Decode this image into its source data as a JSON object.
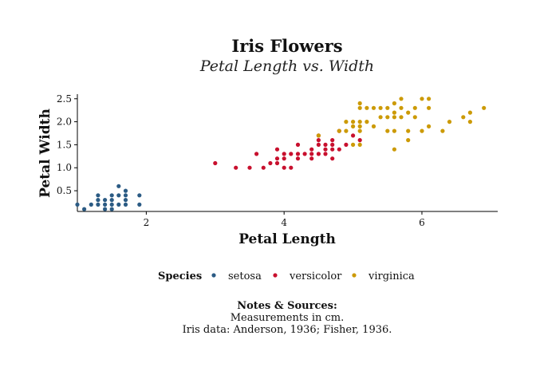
{
  "chart_data": {
    "type": "scatter",
    "title": "Iris Flowers",
    "subtitle": "Petal Length vs. Width",
    "xlabel": "Petal Length",
    "ylabel": "Petal Width",
    "xlim": [
      1.0,
      7.1
    ],
    "ylim": [
      0.05,
      2.6
    ],
    "xticks": [
      2,
      4,
      6
    ],
    "xtick_labels": [
      "2",
      "4",
      "6"
    ],
    "yticks": [
      0.5,
      1.0,
      1.5,
      2.0,
      2.5
    ],
    "ytick_labels": [
      "0.5",
      "1.0",
      "1.5",
      "2.0",
      "2.5"
    ],
    "grid": false,
    "legend": {
      "title": "Species",
      "position": "bottom"
    },
    "colors": {
      "setosa": "#2b5b84",
      "versicolor": "#c8102e",
      "virginica": "#cc9a06"
    },
    "series": [
      {
        "name": "setosa",
        "points": [
          [
            1.0,
            0.2
          ],
          [
            1.1,
            0.1
          ],
          [
            1.2,
            0.2
          ],
          [
            1.3,
            0.2
          ],
          [
            1.3,
            0.3
          ],
          [
            1.3,
            0.4
          ],
          [
            1.4,
            0.1
          ],
          [
            1.4,
            0.2
          ],
          [
            1.4,
            0.3
          ],
          [
            1.5,
            0.1
          ],
          [
            1.5,
            0.2
          ],
          [
            1.5,
            0.3
          ],
          [
            1.5,
            0.4
          ],
          [
            1.6,
            0.2
          ],
          [
            1.6,
            0.4
          ],
          [
            1.6,
            0.6
          ],
          [
            1.7,
            0.2
          ],
          [
            1.7,
            0.3
          ],
          [
            1.7,
            0.4
          ],
          [
            1.7,
            0.5
          ],
          [
            1.9,
            0.2
          ],
          [
            1.9,
            0.4
          ]
        ]
      },
      {
        "name": "versicolor",
        "points": [
          [
            3.0,
            1.1
          ],
          [
            3.3,
            1.0
          ],
          [
            3.5,
            1.0
          ],
          [
            3.6,
            1.3
          ],
          [
            3.7,
            1.0
          ],
          [
            3.8,
            1.1
          ],
          [
            3.9,
            1.1
          ],
          [
            3.9,
            1.2
          ],
          [
            3.9,
            1.4
          ],
          [
            4.0,
            1.0
          ],
          [
            4.0,
            1.2
          ],
          [
            4.0,
            1.3
          ],
          [
            4.1,
            1.0
          ],
          [
            4.1,
            1.3
          ],
          [
            4.2,
            1.2
          ],
          [
            4.2,
            1.3
          ],
          [
            4.2,
            1.5
          ],
          [
            4.3,
            1.3
          ],
          [
            4.4,
            1.2
          ],
          [
            4.4,
            1.3
          ],
          [
            4.4,
            1.4
          ],
          [
            4.5,
            1.3
          ],
          [
            4.5,
            1.5
          ],
          [
            4.5,
            1.6
          ],
          [
            4.5,
            1.7
          ],
          [
            4.6,
            1.3
          ],
          [
            4.6,
            1.4
          ],
          [
            4.6,
            1.5
          ],
          [
            4.7,
            1.2
          ],
          [
            4.7,
            1.4
          ],
          [
            4.7,
            1.5
          ],
          [
            4.7,
            1.6
          ],
          [
            4.8,
            1.4
          ],
          [
            4.8,
            1.8
          ],
          [
            4.9,
            1.5
          ],
          [
            5.0,
            1.7
          ],
          [
            5.1,
            1.6
          ]
        ]
      },
      {
        "name": "virginica",
        "points": [
          [
            4.5,
            1.7
          ],
          [
            4.8,
            1.8
          ],
          [
            4.9,
            1.8
          ],
          [
            4.9,
            2.0
          ],
          [
            5.0,
            1.5
          ],
          [
            5.0,
            1.9
          ],
          [
            5.0,
            2.0
          ],
          [
            5.1,
            1.5
          ],
          [
            5.1,
            1.8
          ],
          [
            5.1,
            1.9
          ],
          [
            5.1,
            2.0
          ],
          [
            5.1,
            2.3
          ],
          [
            5.1,
            2.4
          ],
          [
            5.2,
            2.0
          ],
          [
            5.2,
            2.3
          ],
          [
            5.3,
            1.9
          ],
          [
            5.3,
            2.3
          ],
          [
            5.4,
            2.1
          ],
          [
            5.4,
            2.3
          ],
          [
            5.5,
            1.8
          ],
          [
            5.5,
            2.1
          ],
          [
            5.5,
            2.3
          ],
          [
            5.6,
            1.4
          ],
          [
            5.6,
            1.8
          ],
          [
            5.6,
            2.1
          ],
          [
            5.6,
            2.2
          ],
          [
            5.6,
            2.4
          ],
          [
            5.7,
            2.1
          ],
          [
            5.7,
            2.3
          ],
          [
            5.7,
            2.5
          ],
          [
            5.8,
            1.6
          ],
          [
            5.8,
            1.8
          ],
          [
            5.8,
            2.2
          ],
          [
            5.9,
            2.1
          ],
          [
            5.9,
            2.3
          ],
          [
            6.0,
            1.8
          ],
          [
            6.0,
            2.5
          ],
          [
            6.1,
            1.9
          ],
          [
            6.1,
            2.3
          ],
          [
            6.1,
            2.5
          ],
          [
            6.3,
            1.8
          ],
          [
            6.4,
            2.0
          ],
          [
            6.6,
            2.1
          ],
          [
            6.7,
            2.0
          ],
          [
            6.7,
            2.2
          ],
          [
            6.9,
            2.3
          ]
        ]
      }
    ]
  },
  "notes": {
    "title": "Notes & Sources:",
    "lines": [
      "Measurements in cm.",
      "Iris data: Anderson, 1936; Fisher, 1936."
    ]
  }
}
